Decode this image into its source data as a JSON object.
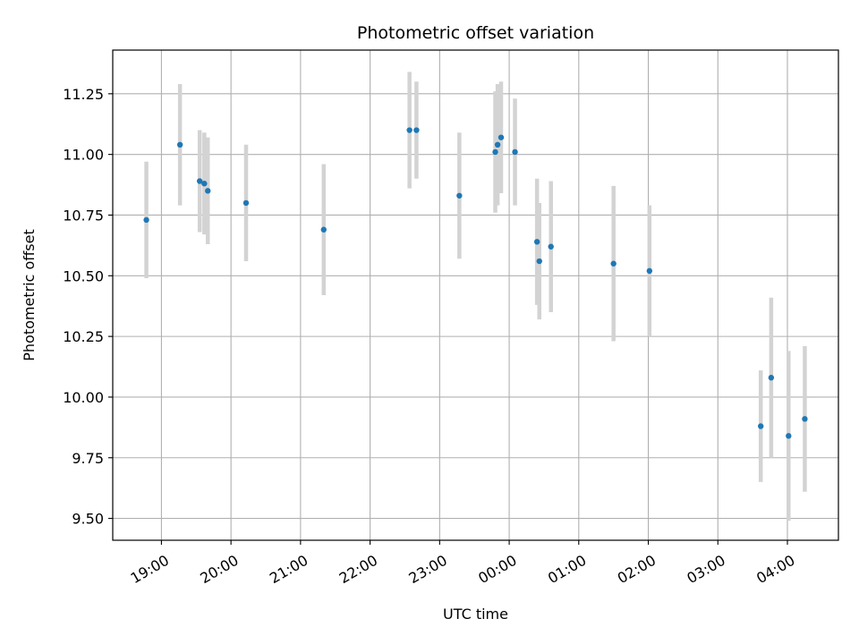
{
  "chart_data": {
    "type": "scatter",
    "title": "Photometric offset variation",
    "xlabel": "UTC time",
    "ylabel": "Photometric offset",
    "x_unit": "hours (UTC clock, values past 24 wrap to next day)",
    "xlim": [
      "18:18",
      "04:44"
    ],
    "ylim": [
      9.41,
      11.43
    ],
    "x_ticks": [
      "19:00",
      "20:00",
      "21:00",
      "22:00",
      "23:00",
      "00:00",
      "01:00",
      "02:00",
      "03:00",
      "04:00"
    ],
    "y_ticks": [
      "9.50",
      "9.75",
      "10.00",
      "10.25",
      "10.50",
      "10.75",
      "11.00",
      "11.25"
    ],
    "grid": true,
    "marker_color": "#1f77b4",
    "errorbar_color": "#d3d3d3",
    "series": [
      {
        "points": [
          {
            "time": "18:47",
            "y": 10.73,
            "yerr": 0.24
          },
          {
            "time": "19:16",
            "y": 11.04,
            "yerr": 0.25
          },
          {
            "time": "19:33",
            "y": 10.89,
            "yerr": 0.21
          },
          {
            "time": "19:37",
            "y": 10.88,
            "yerr": 0.21
          },
          {
            "time": "19:40",
            "y": 10.85,
            "yerr": 0.22
          },
          {
            "time": "20:13",
            "y": 10.8,
            "yerr": 0.24
          },
          {
            "time": "21:20",
            "y": 10.69,
            "yerr": 0.27
          },
          {
            "time": "22:34",
            "y": 11.1,
            "yerr": 0.24
          },
          {
            "time": "22:40",
            "y": 11.1,
            "yerr": 0.2
          },
          {
            "time": "23:17",
            "y": 10.83,
            "yerr": 0.26
          },
          {
            "time": "23:48",
            "y": 11.01,
            "yerr": 0.25
          },
          {
            "time": "23:50",
            "y": 11.04,
            "yerr": 0.25
          },
          {
            "time": "23:53",
            "y": 11.07,
            "yerr": 0.23
          },
          {
            "time": "00:05",
            "y": 11.01,
            "yerr": 0.22
          },
          {
            "time": "00:24",
            "y": 10.64,
            "yerr": 0.26
          },
          {
            "time": "00:26",
            "y": 10.56,
            "yerr": 0.24
          },
          {
            "time": "00:36",
            "y": 10.62,
            "yerr": 0.27
          },
          {
            "time": "01:30",
            "y": 10.55,
            "yerr": 0.32
          },
          {
            "time": "02:01",
            "y": 10.52,
            "yerr": 0.27
          },
          {
            "time": "03:37",
            "y": 9.88,
            "yerr": 0.23
          },
          {
            "time": "03:46",
            "y": 10.08,
            "yerr": 0.33
          },
          {
            "time": "04:01",
            "y": 9.84,
            "yerr": 0.35
          },
          {
            "time": "04:15",
            "y": 9.91,
            "yerr": 0.3
          }
        ]
      }
    ]
  }
}
